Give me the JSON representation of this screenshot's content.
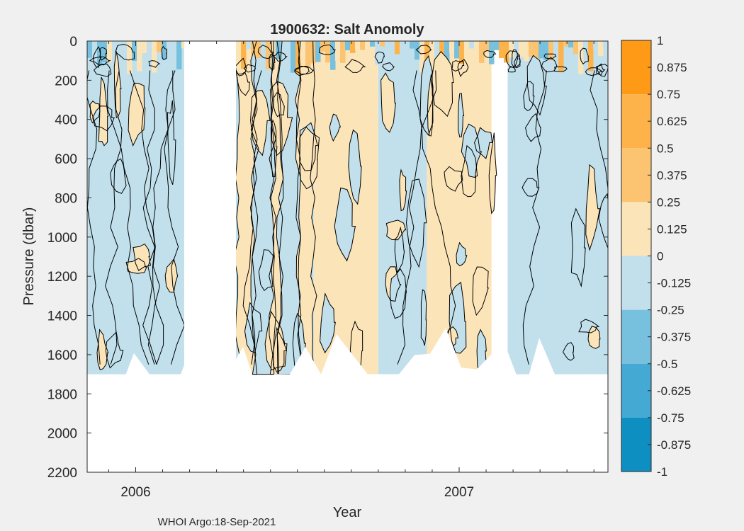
{
  "chart_data": {
    "type": "contour",
    "title": "1900632: Salt Anomoly",
    "xlabel": "Year",
    "ylabel": "Pressure (dbar)",
    "x_tick_labels": [
      "2006",
      "2007"
    ],
    "x_tick_values": [
      2006.0,
      2007.0
    ],
    "xlim": [
      2005.85,
      2007.46
    ],
    "ylim": [
      0,
      2200
    ],
    "y_reversed": true,
    "y_ticks": [
      0,
      200,
      400,
      600,
      800,
      1000,
      1200,
      1400,
      1600,
      1800,
      2000,
      2200
    ],
    "grid": "x-only",
    "colorbar": {
      "levels": [
        1,
        0.875,
        0.75,
        0.625,
        0.5,
        0.375,
        0.25,
        0.125,
        0,
        -0.125,
        -0.25,
        -0.375,
        -0.5,
        -0.625,
        -0.75,
        -0.875,
        -1
      ],
      "level_labels": [
        "1",
        "0.875",
        "0.75",
        "0.625",
        "0.5",
        "0.375",
        "0.25",
        "0.125",
        "0",
        "-0.125",
        "-0.25",
        "-0.375",
        "-0.5",
        "-0.625",
        "-0.75",
        "-0.875",
        "-1"
      ],
      "band_colors": [
        "#ff9a17",
        "#fdb34a",
        "#fcc371",
        "#fce4b9",
        "#c1e0ec",
        "#78c1de",
        "#44a9d3",
        "#0e8fc2"
      ],
      "band_ranges": [
        [
          0.75,
          1
        ],
        [
          0.5,
          0.75
        ],
        [
          0.25,
          0.5
        ],
        [
          0,
          0.25
        ],
        [
          -0.25,
          0
        ],
        [
          -0.5,
          -0.25
        ],
        [
          -0.75,
          -0.5
        ],
        [
          -1,
          -0.75
        ]
      ]
    },
    "depth_regions": [
      {
        "x_start": 2005.85,
        "x_end": 2006.15,
        "anomaly": "negative",
        "band": "-0.25 to 0"
      },
      {
        "x_start": 2006.31,
        "x_end": 2006.55,
        "anomaly": "mixed",
        "band": "-0.25 to 0.25"
      },
      {
        "x_start": 2006.55,
        "x_end": 2006.75,
        "anomaly": "positive",
        "band": "0 to 0.25"
      },
      {
        "x_start": 2006.75,
        "x_end": 2006.9,
        "anomaly": "negative",
        "band": "-0.25 to 0"
      },
      {
        "x_start": 2006.9,
        "x_end": 2007.1,
        "anomaly": "positive",
        "band": "0 to 0.25"
      },
      {
        "x_start": 2007.15,
        "x_end": 2007.46,
        "anomaly": "negative",
        "band": "-0.25 to 0"
      }
    ],
    "data_gaps": [
      [
        2006.15,
        2006.31
      ]
    ],
    "max_depth_dbar": 1700,
    "footer": "WHOI Argo:18-Sep-2021"
  },
  "colors": {
    "background": "#f0f0f0",
    "axes_bg": "#ffffff",
    "text": "#262626",
    "contour": "#000000",
    "grid": "#dedede"
  }
}
